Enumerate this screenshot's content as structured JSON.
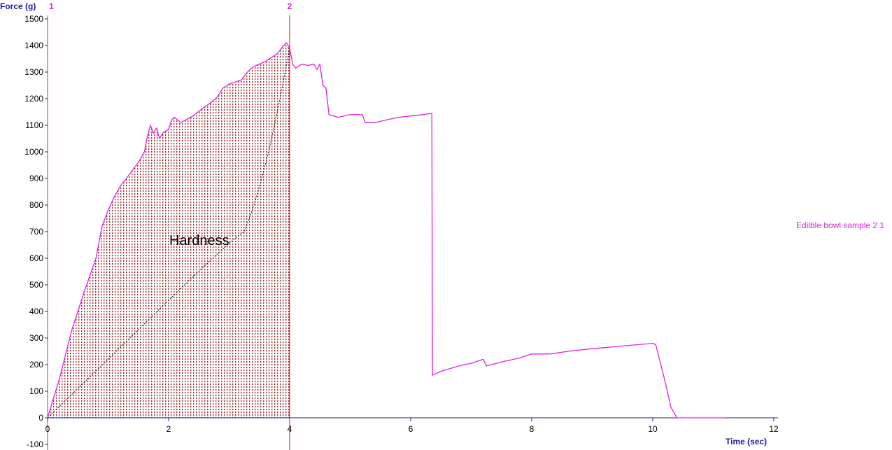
{
  "chart_data": {
    "type": "line",
    "ylabel": "Force (g)",
    "xlabel": "Time (sec)",
    "xlim": [
      0,
      12
    ],
    "ylim": [
      -100,
      1500
    ],
    "x_ticks": [
      "0",
      "2",
      "4",
      "6",
      "8",
      "10",
      "12"
    ],
    "y_ticks": [
      "-100",
      "0",
      "100",
      "200",
      "300",
      "400",
      "500",
      "600",
      "700",
      "800",
      "900",
      "1000",
      "1100",
      "1200",
      "1300",
      "1400",
      "1500"
    ],
    "grid": false,
    "series": [
      {
        "name": "Edilble bowl sample 2 1",
        "color": "#e020e0",
        "points": [
          [
            0.0,
            0
          ],
          [
            0.2,
            150
          ],
          [
            0.4,
            330
          ],
          [
            0.6,
            470
          ],
          [
            0.8,
            600
          ],
          [
            0.9,
            720
          ],
          [
            1.0,
            780
          ],
          [
            1.1,
            830
          ],
          [
            1.2,
            870
          ],
          [
            1.3,
            900
          ],
          [
            1.4,
            930
          ],
          [
            1.5,
            960
          ],
          [
            1.6,
            1000
          ],
          [
            1.65,
            1060
          ],
          [
            1.7,
            1100
          ],
          [
            1.75,
            1070
          ],
          [
            1.8,
            1090
          ],
          [
            1.85,
            1050
          ],
          [
            1.9,
            1070
          ],
          [
            2.0,
            1085
          ],
          [
            2.05,
            1120
          ],
          [
            2.1,
            1130
          ],
          [
            2.2,
            1110
          ],
          [
            2.4,
            1135
          ],
          [
            2.6,
            1170
          ],
          [
            2.7,
            1185
          ],
          [
            2.8,
            1205
          ],
          [
            2.9,
            1240
          ],
          [
            3.0,
            1255
          ],
          [
            3.2,
            1270
          ],
          [
            3.3,
            1300
          ],
          [
            3.4,
            1320
          ],
          [
            3.6,
            1340
          ],
          [
            3.8,
            1370
          ],
          [
            3.9,
            1400
          ],
          [
            3.95,
            1410
          ],
          [
            4.0,
            1390
          ],
          [
            4.05,
            1330
          ],
          [
            4.1,
            1315
          ],
          [
            4.2,
            1330
          ],
          [
            4.3,
            1325
          ],
          [
            4.4,
            1330
          ],
          [
            4.45,
            1310
          ],
          [
            4.5,
            1330
          ],
          [
            4.55,
            1250
          ],
          [
            4.6,
            1240
          ],
          [
            4.65,
            1140
          ],
          [
            4.8,
            1130
          ],
          [
            5.0,
            1140
          ],
          [
            5.2,
            1140
          ],
          [
            5.25,
            1110
          ],
          [
            5.4,
            1110
          ],
          [
            5.6,
            1120
          ],
          [
            5.8,
            1130
          ],
          [
            6.0,
            1135
          ],
          [
            6.2,
            1140
          ],
          [
            6.35,
            1145
          ],
          [
            6.36,
            160
          ],
          [
            6.5,
            175
          ],
          [
            6.8,
            195
          ],
          [
            7.0,
            205
          ],
          [
            7.2,
            220
          ],
          [
            7.25,
            195
          ],
          [
            7.5,
            210
          ],
          [
            7.8,
            225
          ],
          [
            8.0,
            240
          ],
          [
            8.3,
            240
          ],
          [
            8.6,
            250
          ],
          [
            9.0,
            260
          ],
          [
            9.5,
            270
          ],
          [
            10.0,
            280
          ],
          [
            10.05,
            275
          ],
          [
            10.1,
            230
          ],
          [
            10.2,
            140
          ],
          [
            10.3,
            40
          ],
          [
            10.4,
            0
          ],
          [
            11.2,
            0
          ]
        ]
      }
    ],
    "markers": [
      {
        "label": "1",
        "x": 0
      },
      {
        "label": "2",
        "x": 4
      }
    ],
    "annotation": {
      "text": "Hardness",
      "x_from": 0,
      "x_to": 4
    }
  }
}
